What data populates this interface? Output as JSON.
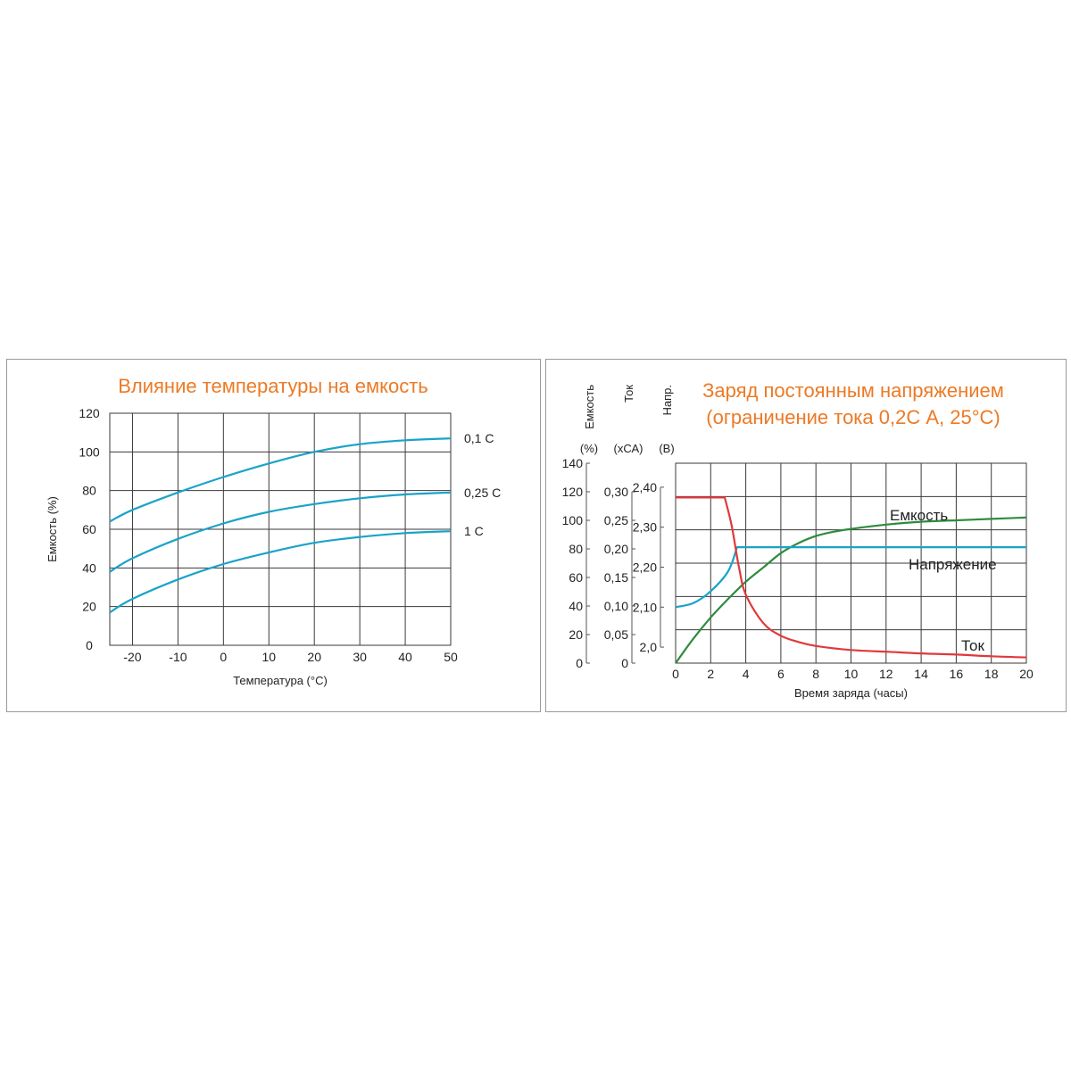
{
  "colors": {
    "title": "#ec7a25",
    "blue": "#1aa3c8",
    "red": "#e0393b",
    "green": "#2e8b3e",
    "grid": "#3a3a3a"
  },
  "chart_data": [
    {
      "type": "line",
      "title": "Влияние температуры на емкость",
      "xlabel": "Температура (°C)",
      "ylabel": "Емкость (%)",
      "xlim": [
        -25,
        50
      ],
      "ylim": [
        0,
        120
      ],
      "x_ticks": [
        "-20",
        "-10",
        "0",
        "10",
        "20",
        "30",
        "40",
        "50"
      ],
      "y_ticks": [
        "0",
        "20",
        "40",
        "60",
        "80",
        "100",
        "120"
      ],
      "grid": true,
      "series": [
        {
          "name": "0,1 С",
          "color": "#1aa3c8",
          "x": [
            -25,
            -20,
            -10,
            0,
            10,
            20,
            30,
            40,
            50
          ],
          "y": [
            64,
            70,
            79,
            87,
            94,
            100,
            104,
            106,
            107
          ]
        },
        {
          "name": "0,25 С",
          "color": "#1aa3c8",
          "x": [
            -25,
            -20,
            -10,
            0,
            10,
            20,
            30,
            40,
            50
          ],
          "y": [
            38,
            45,
            55,
            63,
            69,
            73,
            76,
            78,
            79
          ]
        },
        {
          "name": "1 С",
          "color": "#1aa3c8",
          "x": [
            -25,
            -20,
            -10,
            0,
            10,
            20,
            30,
            40,
            50
          ],
          "y": [
            17,
            24,
            34,
            42,
            48,
            53,
            56,
            58,
            59
          ]
        }
      ]
    },
    {
      "type": "line",
      "title": [
        "Заряд постоянным напряжением",
        "(ограничение тока 0,2С А, 25°C)"
      ],
      "xlabel": "Время заряда (часы)",
      "xlim": [
        0,
        20
      ],
      "x_ticks": [
        "0",
        "2",
        "4",
        "6",
        "8",
        "10",
        "12",
        "14",
        "16",
        "18",
        "20"
      ],
      "grid": true,
      "y_axes": [
        {
          "label": "Емкость",
          "unit": "(%)",
          "ylim": [
            0,
            140
          ],
          "ticks": [
            "0",
            "20",
            "40",
            "60",
            "80",
            "100",
            "120",
            "140"
          ]
        },
        {
          "label": "Ток",
          "unit": "(хСА)",
          "ylim": [
            0,
            0.35
          ],
          "ticks": [
            "0",
            "0,05",
            "0,10",
            "0,15",
            "0,20",
            "0,25",
            "0,30"
          ]
        },
        {
          "label": "Напр.",
          "unit": "(В)",
          "ylim": [
            1.96,
            2.46
          ],
          "ticks": [
            "2,0",
            "2,10",
            "2,20",
            "2,30",
            "2,40"
          ]
        }
      ],
      "series": [
        {
          "name": "Емкость",
          "color": "#2e8b3e",
          "axis": 0,
          "x": [
            0,
            1,
            2,
            3,
            4,
            5,
            6,
            7,
            8,
            9,
            10,
            12,
            14,
            16,
            18,
            20
          ],
          "y": [
            0,
            17,
            32,
            45,
            57,
            67,
            77,
            84,
            89,
            92,
            94,
            97,
            99,
            100,
            101,
            102
          ]
        },
        {
          "name": "Напряжение",
          "color": "#1aa3c8",
          "axis": 2,
          "x": [
            0,
            1,
            2,
            3,
            3.5,
            4,
            8,
            12,
            16,
            20
          ],
          "y": [
            2.1,
            2.11,
            2.14,
            2.19,
            2.25,
            2.25,
            2.25,
            2.25,
            2.25,
            2.25
          ]
        },
        {
          "name": "Ток",
          "color": "#e0393b",
          "axis": 1,
          "x": [
            0,
            1,
            2,
            2.8,
            3.2,
            3.6,
            4,
            5,
            6,
            7,
            8,
            10,
            12,
            14,
            16,
            18,
            20
          ],
          "y": [
            0.29,
            0.29,
            0.29,
            0.29,
            0.24,
            0.17,
            0.12,
            0.07,
            0.048,
            0.037,
            0.03,
            0.023,
            0.02,
            0.017,
            0.015,
            0.012,
            0.01
          ]
        }
      ]
    }
  ]
}
